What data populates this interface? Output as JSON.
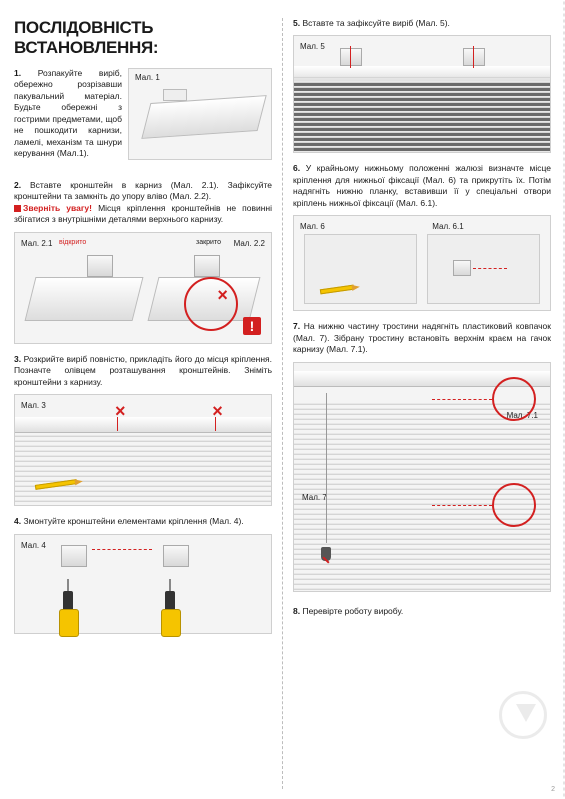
{
  "title": "ПОСЛІДОВНІСТЬ ВСТАНОВЛЕННЯ:",
  "page_number": "2",
  "left": {
    "step1": {
      "num": "1.",
      "text": "Розпакуйте виріб, обережно розрізавши пакувальний матеріал. Будьте обережні з гострими предметами, щоб не пошкодити карнизи, ламелі, механізм та шнури керування (Мал.1).",
      "fig_label": "Мал. 1"
    },
    "step2": {
      "num": "2.",
      "text": "Вставте кронштейн в карниз (Мал. 2.1). Зафіксуйте кронштейни та замкніть до упору вліво (Мал. 2.2).",
      "warn_label": "Зверніть увагу!",
      "warn_text": "Місця кріплення кронштейнів не повинні збігатися з внутрішніми деталями верхнього карнизу.",
      "fig_label_a": "Мал. 2.1",
      "fig_label_b": "Мал. 2.2",
      "open": "відкрито",
      "closed": "закрито"
    },
    "step3": {
      "num": "3.",
      "text": "Розкрийте виріб повністю, прикладіть його до місця кріплення. Позначте олівцем розташування кронштейнів. Зніміть кронштейни з карнизу.",
      "fig_label": "Мал. 3"
    },
    "step4": {
      "num": "4.",
      "text": "Змонтуйте кронштейни елементами кріплення (Мал. 4).",
      "fig_label": "Мал. 4"
    }
  },
  "right": {
    "step5": {
      "num": "5.",
      "text": "Вставте та зафіксуйте виріб (Мал. 5).",
      "fig_label": "Мал. 5"
    },
    "step6": {
      "num": "6.",
      "text": "У крайньому нижньому положенні жалюзі визначте місце кріплення для нижньої фіксації (Мал. 6) та прикрутіть їх. Потім надягніть нижню планку, вставивши її у спеціальні отвори кріплень нижньої фіксації (Мал. 6.1).",
      "fig_label_a": "Мал. 6",
      "fig_label_b": "Мал. 6.1"
    },
    "step7": {
      "num": "7.",
      "text": "На нижню частину тростини надягніть пластиковий ковпачок (Мал. 7). Зібрану тростину встановіть верхнім краєм на гачок карнизу (Мал. 7.1).",
      "fig_label_a": "Мал. 7",
      "fig_label_b": "Мал. 7.1"
    },
    "step8": {
      "num": "8.",
      "text": "Перевірте роботу виробу."
    }
  },
  "colors": {
    "accent_red": "#d32020",
    "drill_yellow": "#f5c400",
    "border_gray": "#cfcfcf",
    "bg_gray": "#f4f4f4"
  }
}
